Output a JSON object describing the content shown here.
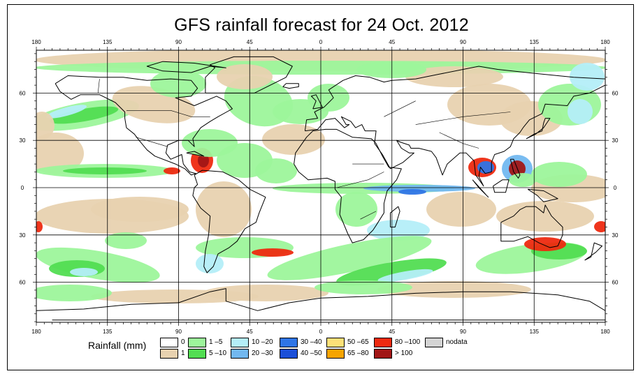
{
  "title": "GFS rainfall forecast for 24 Oct. 2012",
  "axes": {
    "top_labels": [
      "180",
      "135",
      "90",
      "45",
      "0",
      "45",
      "90",
      "135",
      "180"
    ],
    "bottom_labels": [
      "180",
      "135",
      "90",
      "45",
      "0",
      "45",
      "90",
      "135",
      "180"
    ],
    "left_labels": [
      "60",
      "30",
      "0",
      "30",
      "60"
    ],
    "right_labels": [
      "60",
      "30",
      "0",
      "30",
      "60"
    ]
  },
  "legend": {
    "title": "Rainfall (mm)",
    "items": [
      {
        "label": "0",
        "color": "#ffffff"
      },
      {
        "label": "1",
        "color": "#e8d2b0"
      },
      {
        "label": "1 –5",
        "color": "#9df59b"
      },
      {
        "label": "5 –10",
        "color": "#52dd52"
      },
      {
        "label": "10 –20",
        "color": "#b4eef8"
      },
      {
        "label": "20 –30",
        "color": "#72b8f0"
      },
      {
        "label": "30 –40",
        "color": "#2f75e6"
      },
      {
        "label": "40 –50",
        "color": "#1b4fd8"
      },
      {
        "label": "50 –65",
        "color": "#fde078"
      },
      {
        "label": "65 –80",
        "color": "#f6a400"
      },
      {
        "label": "80 –100",
        "color": "#ee2a10"
      },
      {
        "label": "> 100",
        "color": "#a11616"
      },
      {
        "label": "nodata",
        "color": "#d4d4d4"
      }
    ]
  },
  "colors": {
    "land_outline": "#000000",
    "grid": "#000000",
    "frame": "#000000"
  }
}
